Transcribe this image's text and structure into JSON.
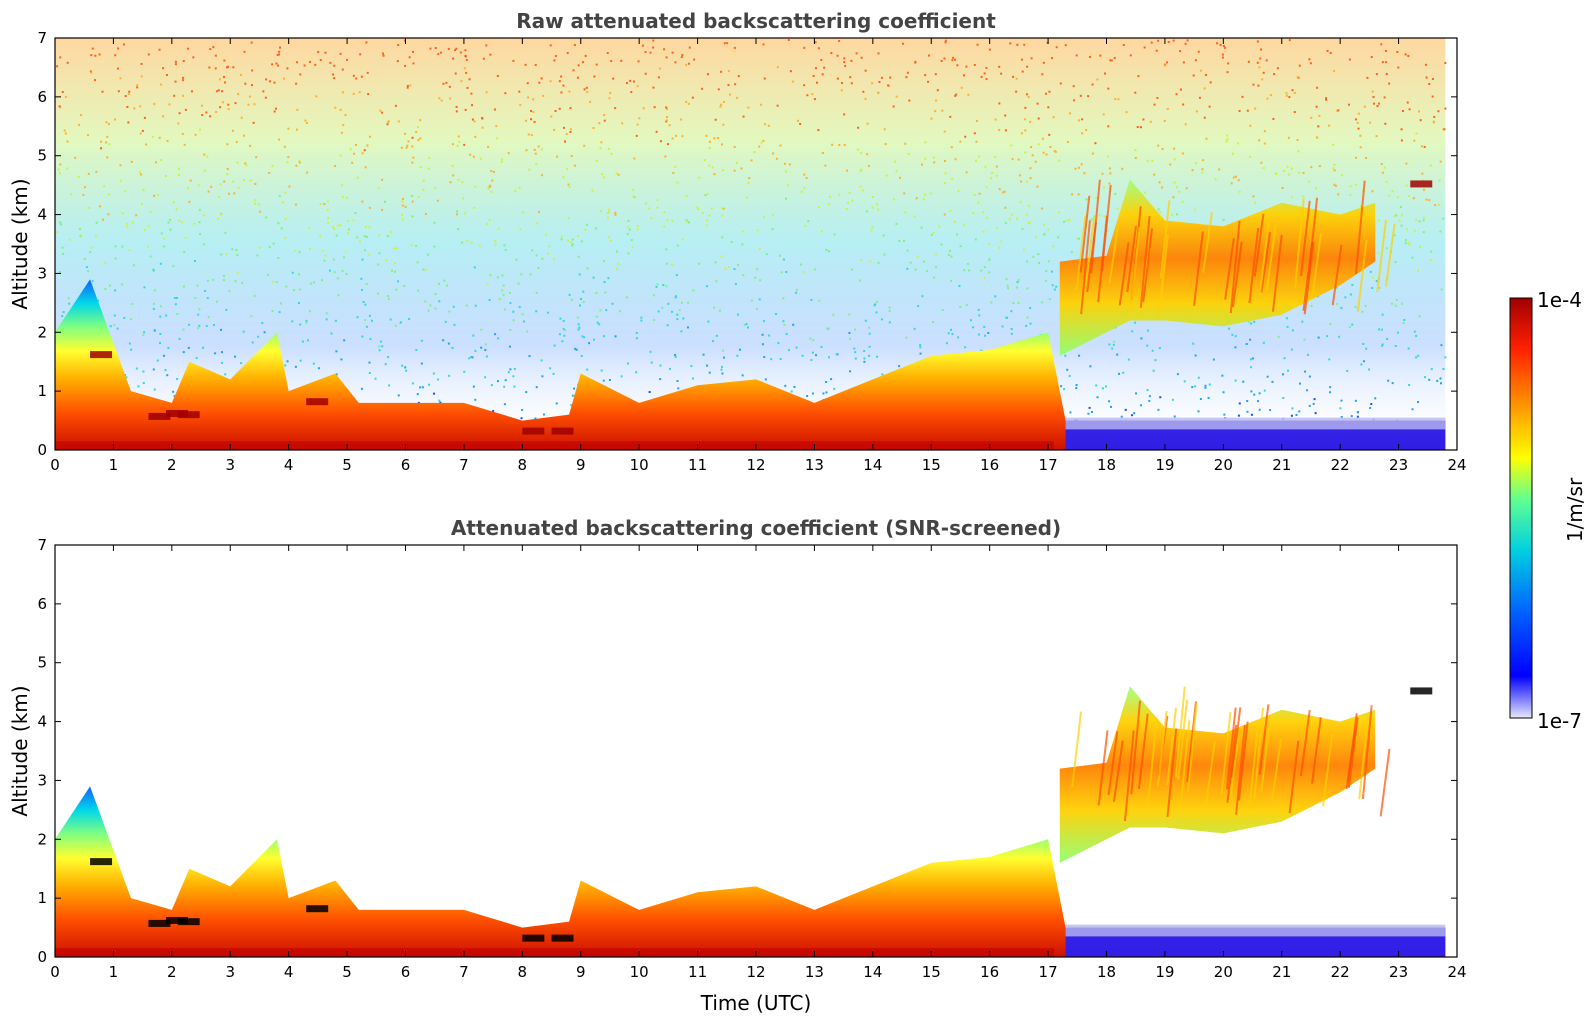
{
  "chart_data": [
    {
      "type": "heatmap",
      "title": "Raw attenuated backscattering coefficient",
      "xlabel": "",
      "ylabel": "Altitude (km)",
      "xlim": [
        0,
        24
      ],
      "ylim": [
        0,
        7
      ],
      "xticks": [
        0,
        1,
        2,
        3,
        4,
        5,
        6,
        7,
        8,
        9,
        10,
        11,
        12,
        13,
        14,
        15,
        16,
        17,
        18,
        19,
        20,
        21,
        22,
        23,
        24
      ],
      "yticks": [
        0,
        1,
        2,
        3,
        4,
        5,
        6,
        7
      ],
      "data_end_hour": 23.8,
      "noise": "present",
      "boundary_layer_top_km": [
        {
          "t": 0,
          "top": 2.0
        },
        {
          "t": 0.6,
          "top": 2.9
        },
        {
          "t": 1.3,
          "top": 1.0
        },
        {
          "t": 2.0,
          "top": 0.8
        },
        {
          "t": 2.3,
          "top": 1.5
        },
        {
          "t": 3.0,
          "top": 1.2
        },
        {
          "t": 3.8,
          "top": 2.0
        },
        {
          "t": 4.0,
          "top": 1.0
        },
        {
          "t": 4.8,
          "top": 1.3
        },
        {
          "t": 5.2,
          "top": 0.8
        },
        {
          "t": 6.0,
          "top": 0.8
        },
        {
          "t": 7.0,
          "top": 0.8
        },
        {
          "t": 8.0,
          "top": 0.5
        },
        {
          "t": 8.8,
          "top": 0.6
        },
        {
          "t": 9.0,
          "top": 1.3
        },
        {
          "t": 10.0,
          "top": 0.8
        },
        {
          "t": 11.0,
          "top": 1.1
        },
        {
          "t": 12.0,
          "top": 1.2
        },
        {
          "t": 13.0,
          "top": 0.8
        },
        {
          "t": 14.0,
          "top": 1.2
        },
        {
          "t": 15.0,
          "top": 1.6
        },
        {
          "t": 16.0,
          "top": 1.7
        },
        {
          "t": 17.0,
          "top": 2.0
        },
        {
          "t": 17.3,
          "top": 0.5
        },
        {
          "t": 23.8,
          "top": 0.5
        }
      ],
      "elevated_layer_km": [
        {
          "t": 17.2,
          "bottom": 1.6,
          "top": 3.2
        },
        {
          "t": 18.0,
          "bottom": 2.0,
          "top": 3.3
        },
        {
          "t": 18.4,
          "bottom": 2.2,
          "top": 4.6
        },
        {
          "t": 19.0,
          "bottom": 2.2,
          "top": 3.9
        },
        {
          "t": 20.0,
          "bottom": 2.1,
          "top": 3.8
        },
        {
          "t": 21.0,
          "bottom": 2.3,
          "top": 4.2
        },
        {
          "t": 22.0,
          "bottom": 2.8,
          "top": 4.0
        },
        {
          "t": 22.6,
          "bottom": 3.2,
          "top": 4.2
        }
      ]
    },
    {
      "type": "heatmap",
      "title": "Attenuated backscattering coefficient (SNR-screened)",
      "xlabel": "Time (UTC)",
      "ylabel": "Altitude (km)",
      "xlim": [
        0,
        24
      ],
      "ylim": [
        0,
        7
      ],
      "xticks": [
        0,
        1,
        2,
        3,
        4,
        5,
        6,
        7,
        8,
        9,
        10,
        11,
        12,
        13,
        14,
        15,
        16,
        17,
        18,
        19,
        20,
        21,
        22,
        23,
        24
      ],
      "yticks": [
        0,
        1,
        2,
        3,
        4,
        5,
        6,
        7
      ],
      "data_end_hour": 23.8,
      "noise": "screened"
    }
  ],
  "colorbar": {
    "min_label": "1e-7",
    "max_label": "1e-4",
    "label": "1/m/sr",
    "colors": [
      "#e8e8f8",
      "#0000ff",
      "#00aaff",
      "#00e0e0",
      "#80ff80",
      "#ffff00",
      "#ffa000",
      "#ff2000",
      "#a00000"
    ]
  }
}
